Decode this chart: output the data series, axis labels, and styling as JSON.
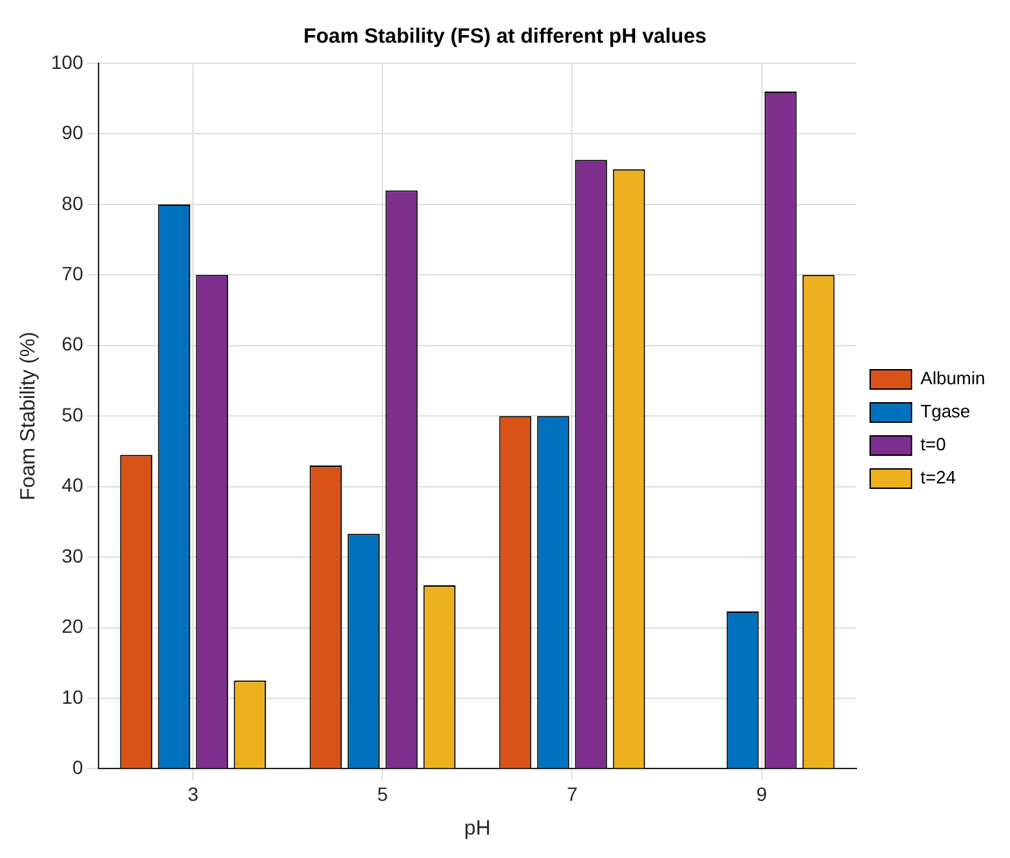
{
  "chart_data": {
    "type": "bar",
    "title": "Foam Stability (FS) at different pH values",
    "xlabel": "pH",
    "ylabel": "Foam Stability (%)",
    "categories": [
      "3",
      "5",
      "7",
      "9"
    ],
    "series": [
      {
        "name": "Albumin",
        "color": "#d95319",
        "values": [
          44.5,
          43,
          50,
          null
        ]
      },
      {
        "name": "Tgase",
        "color": "#0072bd",
        "values": [
          80,
          33.3,
          50,
          22.3
        ]
      },
      {
        "name": "t=0",
        "color": "#7e2f8e",
        "values": [
          70,
          82,
          86.3,
          96
        ]
      },
      {
        "name": "t=24",
        "color": "#edb120",
        "values": [
          12.5,
          26,
          85,
          70
        ]
      }
    ],
    "ylim": [
      0,
      100
    ],
    "yticks": [
      0,
      10,
      20,
      30,
      40,
      50,
      60,
      70,
      80,
      90,
      100
    ],
    "grid": true,
    "legend": "right"
  }
}
